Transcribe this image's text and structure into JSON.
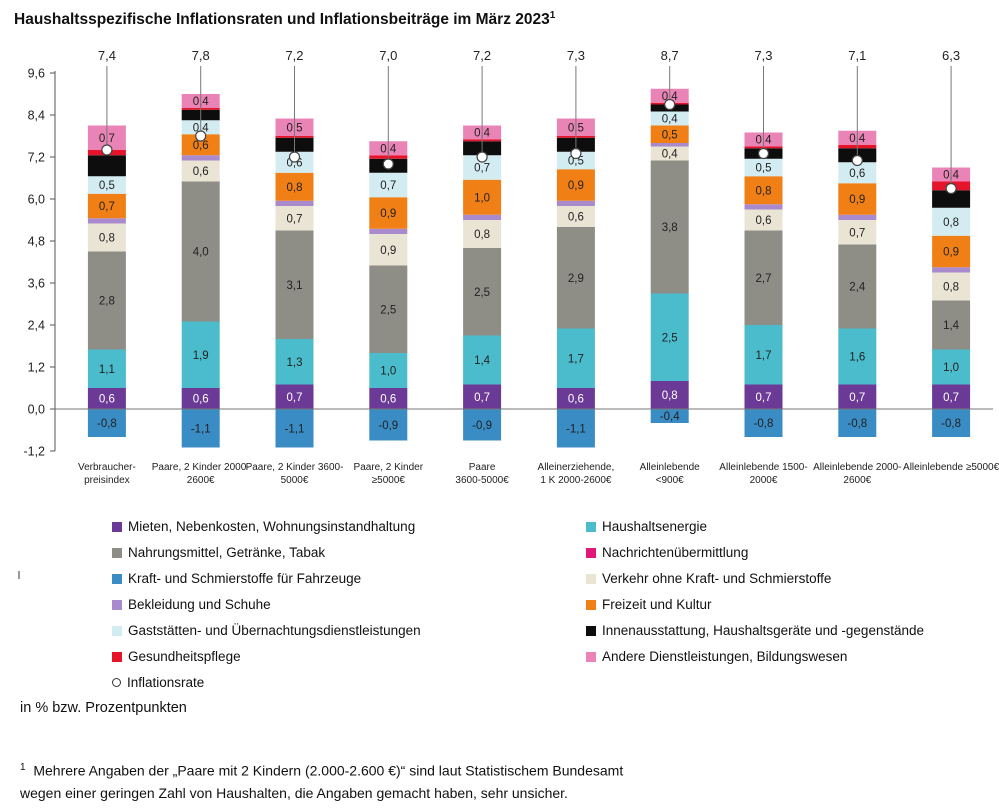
{
  "title": "Haushaltsspezifische Inflationsraten und Inflationsbeiträge im März 2023",
  "title_sup": "1",
  "unit_note": "in % bzw. Prozentpunkten",
  "footnote_mark": "1",
  "footnote_line1": "Mehrere Angaben der „Paare mit 2 Kindern (2.000-2.600 €)“ sind laut Statistischem Bundesamt",
  "footnote_line2": "wegen einer geringen Zahl von Haushalten, die Angaben gemacht haben, sehr unsicher.",
  "inflation_legend_label": "Inflationsrate",
  "chart_data": {
    "type": "bar",
    "stacked": true,
    "ylim": [
      -1.2,
      9.6
    ],
    "y_ticks": [
      "9,6",
      "8,4",
      "7,2",
      "6,0",
      "4,8",
      "3,6",
      "2,4",
      "1,2",
      "0,0",
      "-1,2"
    ],
    "y_tick_values": [
      9.6,
      8.4,
      7.2,
      6.0,
      4.8,
      3.6,
      2.4,
      1.2,
      0.0,
      -1.2
    ],
    "legend_position": "bottom",
    "categories": [
      [
        "Verbraucher-",
        "preisindex"
      ],
      [
        "Paare, 2  Kinder 2000-",
        "2600€"
      ],
      [
        "Paare, 2  Kinder 3600-",
        "5000€"
      ],
      [
        "Paare, 2  Kinder",
        "≥5000€"
      ],
      [
        "Paare",
        "3600-5000€"
      ],
      [
        "Alleinerziehende,",
        "1 K 2000-2600€"
      ],
      [
        "Alleinlebende",
        "<900€"
      ],
      [
        "Alleinlebende 1500-",
        "2000€"
      ],
      [
        "Alleinlebende 2000-",
        "2600€"
      ],
      [
        "Alleinlebende ≥5000€"
      ]
    ],
    "inflation_rate": [
      7.4,
      7.8,
      7.2,
      7.0,
      7.2,
      7.3,
      8.7,
      7.3,
      7.1,
      6.3
    ],
    "inflation_labels": [
      "7,4",
      "7,8",
      "7,2",
      "7,0",
      "7,2",
      "7,3",
      "8,7",
      "7,3",
      "7,1",
      "6,3"
    ],
    "series": [
      {
        "name": "Mieten, Nebenkosten, Wohnungsinstandhaltung",
        "color": "#6b3a96",
        "values": [
          0.6,
          0.6,
          0.7,
          0.6,
          0.7,
          0.6,
          0.8,
          0.7,
          0.7,
          0.7
        ],
        "labels": [
          "0,6",
          "0,6",
          "0,7",
          "0,6",
          "0,7",
          "0,6",
          "0,8",
          "0,7",
          "0,7",
          "0,7"
        ]
      },
      {
        "name": "Haushaltsenergie",
        "color": "#4bbccc",
        "values": [
          1.1,
          1.9,
          1.3,
          1.0,
          1.4,
          1.7,
          2.5,
          1.7,
          1.6,
          1.0
        ],
        "labels": [
          "1,1",
          "1,9",
          "1,3",
          "1,0",
          "1,4",
          "1,7",
          "2,5",
          "1,7",
          "1,6",
          "1,0"
        ]
      },
      {
        "name": "Nahrungsmittel, Getränke, Tabak",
        "color": "#8e8e86",
        "values": [
          2.8,
          4.0,
          3.1,
          2.5,
          2.5,
          2.9,
          3.8,
          2.7,
          2.4,
          1.4
        ],
        "labels": [
          "2,8",
          "4,0",
          "3,1",
          "2,5",
          "2,5",
          "2,9",
          "3,8",
          "2,7",
          "2,4",
          "1,4"
        ]
      },
      {
        "name": "Nachrichtenübermittlung",
        "color": "#e0187a",
        "values": [
          0,
          0,
          0,
          0,
          0,
          0,
          0,
          0,
          0,
          0
        ],
        "labels": [
          "",
          "",
          "",
          "",
          "",
          "",
          "",
          "",
          "",
          ""
        ]
      },
      {
        "name": "Kraft- und Schmierstoffe für Fahrzeuge",
        "color": "#3a8cc4",
        "values": [
          -0.8,
          -1.1,
          -1.1,
          -0.9,
          -0.9,
          -1.1,
          -0.4,
          -0.8,
          -0.8,
          -0.8
        ],
        "labels": [
          "-0,8",
          "-1,1",
          "-1,1",
          "-0,9",
          "-0,9",
          "-1,1",
          "-0,4",
          "-0,8",
          "-0,8",
          "-0,8"
        ]
      },
      {
        "name": "Verkehr ohne Kraft- und Schmierstoffe",
        "color": "#e9e4d4",
        "values": [
          0.8,
          0.6,
          0.7,
          0.9,
          0.8,
          0.6,
          0.4,
          0.6,
          0.7,
          0.8
        ],
        "labels": [
          "0,8",
          "0,6",
          "0,7",
          "0,9",
          "0,8",
          "0,6",
          "0,4",
          "0,6",
          "0,7",
          "0,8"
        ]
      },
      {
        "name": "Bekleidung und Schuhe",
        "color": "#a98bcd",
        "values": [
          0.15,
          0.15,
          0.15,
          0.15,
          0.15,
          0.15,
          0.1,
          0.15,
          0.15,
          0.15
        ],
        "labels": [
          "",
          "",
          "",
          "",
          "",
          "",
          "",
          "",
          "",
          ""
        ]
      },
      {
        "name": "Freizeit und Kultur",
        "color": "#f07f16",
        "values": [
          0.7,
          0.6,
          0.8,
          0.9,
          1.0,
          0.9,
          0.5,
          0.8,
          0.9,
          0.9
        ],
        "labels": [
          "0,7",
          "0,6",
          "0,8",
          "0,9",
          "1,0",
          "0,9",
          "0,5",
          "0,8",
          "0,9",
          "0,9"
        ]
      },
      {
        "name": "Gaststätten- und Übernachtungsdienstleistungen",
        "color": "#d3ecf1",
        "values": [
          0.5,
          0.4,
          0.6,
          0.7,
          0.7,
          0.5,
          0.4,
          0.5,
          0.6,
          0.8
        ],
        "labels": [
          "0,5",
          "0,4",
          "0,6",
          "0,7",
          "0,7",
          "0,5",
          "0,4",
          "0,5",
          "0,6",
          "0,8"
        ]
      },
      {
        "name": "Innenausstattung, Haushaltsgeräte und -gegenstände",
        "color": "#0d0d0d",
        "values": [
          0.6,
          0.3,
          0.4,
          0.4,
          0.4,
          0.4,
          0.2,
          0.3,
          0.4,
          0.5
        ],
        "labels": [
          "",
          "",
          "",
          "",
          "",
          "",
          "",
          "",
          "",
          ""
        ]
      },
      {
        "name": "Gesundheitspflege",
        "color": "#e5142b",
        "values": [
          0.15,
          0.05,
          0.05,
          0.1,
          0.05,
          0.05,
          0.05,
          0.05,
          0.1,
          0.25
        ],
        "labels": [
          "",
          "",
          "",
          "",
          "",
          "",
          "",
          "",
          "",
          ""
        ]
      },
      {
        "name": "Andere Dienstleistungen, Bildungswesen",
        "color": "#ea84b6",
        "values": [
          0.7,
          0.4,
          0.5,
          0.4,
          0.4,
          0.5,
          0.4,
          0.4,
          0.4,
          0.4
        ],
        "labels": [
          "0,7",
          "0,4",
          "0,5",
          "0,4",
          "0,4",
          "0,5",
          "0,4",
          "0,4",
          "0,4",
          "0,4"
        ]
      }
    ],
    "legend_left": [
      "Mieten, Nebenkosten, Wohnungsinstandhaltung",
      "Nahrungsmittel, Getränke, Tabak",
      "Kraft- und Schmierstoffe für Fahrzeuge",
      "Bekleidung und Schuhe",
      "Gaststätten- und Übernachtungsdienstleistungen",
      "Gesundheitspflege"
    ],
    "legend_right": [
      "Haushaltsenergie",
      "Nachrichtenübermittlung",
      "Verkehr ohne Kraft- und Schmierstoffe",
      "Freizeit und Kultur",
      "Innenausstattung, Haushaltsgeräte und -gegenstände",
      "Andere Dienstleistungen, Bildungswesen"
    ]
  }
}
